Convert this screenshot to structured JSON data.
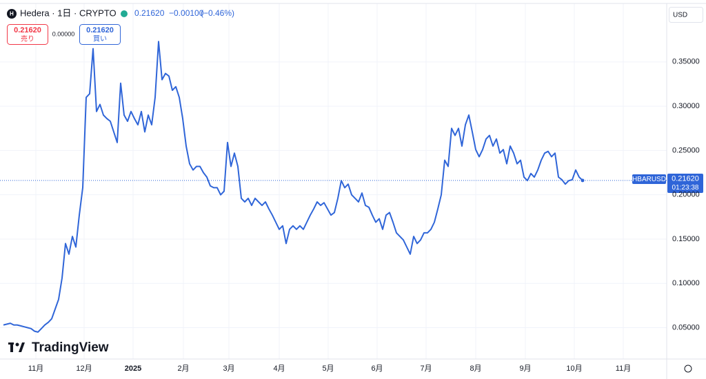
{
  "header": {
    "symbol": "Hedera · 1日 · CRYPTO",
    "price": "0.21620",
    "change": "−0.00100",
    "change_pct": "(−0.46%)",
    "sell_price": "0.21620",
    "sell_label": "売り",
    "spread": "0.00000",
    "buy_price": "0.21620",
    "buy_label": "買い",
    "currency": "USD",
    "ticker": "HBARUSD",
    "countdown": "01:23:38",
    "logo": "TradingView"
  },
  "chart_data": {
    "type": "line",
    "color": "#2f65d8",
    "grid": true,
    "series": [
      {
        "name": "HBARUSD",
        "color": "#2f65d8",
        "values": [
          0.053,
          0.054,
          0.055,
          0.053,
          0.053,
          0.052,
          0.051,
          0.05,
          0.049,
          0.046,
          0.045,
          0.049,
          0.053,
          0.056,
          0.06,
          0.071,
          0.082,
          0.106,
          0.145,
          0.133,
          0.153,
          0.141,
          0.177,
          0.208,
          0.31,
          0.314,
          0.365,
          0.294,
          0.302,
          0.29,
          0.286,
          0.283,
          0.271,
          0.259,
          0.326,
          0.29,
          0.283,
          0.294,
          0.286,
          0.279,
          0.294,
          0.271,
          0.29,
          0.279,
          0.31,
          0.373,
          0.33,
          0.337,
          0.334,
          0.318,
          0.322,
          0.31,
          0.286,
          0.255,
          0.235,
          0.228,
          0.232,
          0.232,
          0.225,
          0.22,
          0.21,
          0.208,
          0.208,
          0.2,
          0.204,
          0.259,
          0.232,
          0.247,
          0.232,
          0.196,
          0.192,
          0.196,
          0.188,
          0.196,
          0.192,
          0.188,
          0.192,
          0.184,
          0.177,
          0.169,
          0.161,
          0.165,
          0.145,
          0.161,
          0.165,
          0.161,
          0.165,
          0.161,
          0.169,
          0.177,
          0.184,
          0.192,
          0.188,
          0.191,
          0.184,
          0.177,
          0.18,
          0.196,
          0.216,
          0.208,
          0.212,
          0.2,
          0.196,
          0.192,
          0.202,
          0.188,
          0.186,
          0.177,
          0.169,
          0.173,
          0.161,
          0.177,
          0.18,
          0.169,
          0.157,
          0.153,
          0.149,
          0.141,
          0.133,
          0.153,
          0.145,
          0.149,
          0.157,
          0.157,
          0.161,
          0.169,
          0.184,
          0.2,
          0.239,
          0.232,
          0.275,
          0.267,
          0.275,
          0.255,
          0.279,
          0.29,
          0.271,
          0.251,
          0.243,
          0.251,
          0.263,
          0.267,
          0.255,
          0.263,
          0.247,
          0.251,
          0.235,
          0.255,
          0.247,
          0.235,
          0.239,
          0.22,
          0.216,
          0.224,
          0.22,
          0.228,
          0.239,
          0.247,
          0.249,
          0.243,
          0.247,
          0.22,
          0.217,
          0.212,
          0.216,
          0.217,
          0.228,
          0.22,
          0.2162
        ]
      }
    ],
    "xlim": [
      -1,
      192.4
    ],
    "xticks": [
      {
        "value": 9.4,
        "label": "11月"
      },
      {
        "value": 23.4,
        "label": "12月"
      },
      {
        "value": 37.6,
        "label": "2025"
      },
      {
        "value": 52.2,
        "label": "2月"
      },
      {
        "value": 65.4,
        "label": "3月"
      },
      {
        "value": 80,
        "label": "4月"
      },
      {
        "value": 94.2,
        "label": "5月"
      },
      {
        "value": 108.4,
        "label": "6月"
      },
      {
        "value": 122.6,
        "label": "7月"
      },
      {
        "value": 137,
        "label": "8月"
      },
      {
        "value": 151.4,
        "label": "9月"
      },
      {
        "value": 165.6,
        "label": "10月"
      },
      {
        "value": 179.8,
        "label": "11月"
      }
    ],
    "ylim": [
      0.0146,
      0.416
    ],
    "yticks": [
      {
        "value": 0.05,
        "label": "0.05000"
      },
      {
        "value": 0.1,
        "label": "0.10000"
      },
      {
        "value": 0.15,
        "label": "0.15000"
      },
      {
        "value": 0.2,
        "label": "0.20000"
      },
      {
        "value": 0.25,
        "label": "0.25000"
      },
      {
        "value": 0.3,
        "label": "0.30000"
      },
      {
        "value": 0.35,
        "label": "0.35000"
      }
    ]
  }
}
